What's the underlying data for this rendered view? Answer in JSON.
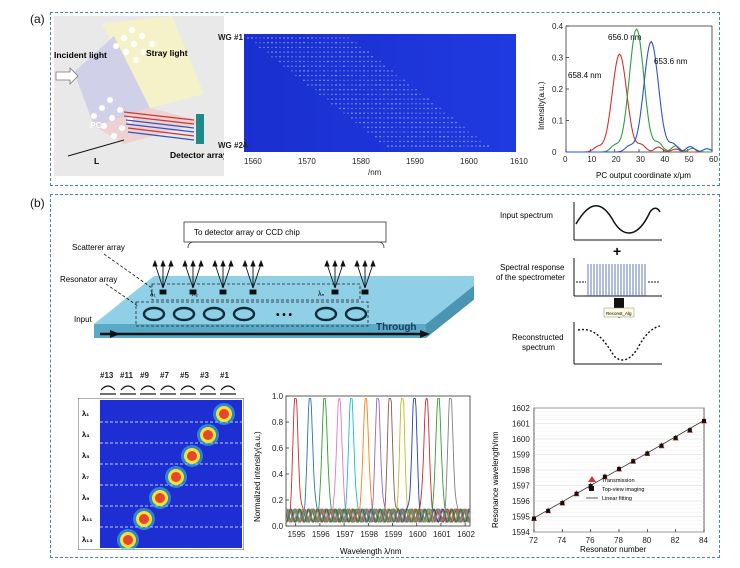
{
  "panel_a": {
    "label": "(a)",
    "schematic": {
      "incident": "Incident light",
      "stray": "Stray light",
      "pc": "PC",
      "length": "L",
      "detector": "Detector array"
    },
    "waveguide_map": {
      "top_label": "WG #1",
      "bottom_label": "WG #24",
      "x_ticks": [
        "1560",
        "1570",
        "1580",
        "1590",
        "1600",
        "1610"
      ],
      "x_unit": "/nm"
    },
    "intensity_chart": {
      "ylabel": "Intensity(a.u.)",
      "xlabel": "PC output coordinate x/μm",
      "x_ticks": [
        "0",
        "10",
        "20",
        "30",
        "40",
        "50",
        "60"
      ],
      "y_ticks": [
        "0",
        "0.1",
        "0.2",
        "0.3",
        "0.4"
      ],
      "peaks": [
        {
          "label": "656.0 nm",
          "color": "#2e9e3f"
        },
        {
          "label": "653.6 nm",
          "color": "#2b55c9"
        },
        {
          "label": "658.4 nm",
          "color": "#d2352f"
        }
      ]
    }
  },
  "panel_b": {
    "label": "(b)",
    "device": {
      "top_box": "To detector array or CCD chip",
      "scatterer": "Scatterer array",
      "resonator": "Resonator array",
      "input": "Input",
      "through": "Through",
      "dots": "• • •",
      "lambda_1": "λ₁",
      "lambda_2": "λ₂",
      "lambda_n": "λₙ"
    },
    "workflow": {
      "input_spectrum": "Input spectrum",
      "response_line1": "Spectral response",
      "response_line2": "of the spectrometer",
      "plus": "+",
      "algorithm": "Reconst_Alg",
      "recon_line1": "Reconstructed",
      "recon_line2": "spectrum"
    },
    "resonator_labels": [
      "#13",
      "#11",
      "#9",
      "#7",
      "#5",
      "#3",
      "#1"
    ],
    "lambda_labels": [
      "λ₁",
      "λ₃",
      "λ₅",
      "λ₇",
      "λ₉",
      "λ₁₁",
      "λ₁₃"
    ],
    "spectrum_chart": {
      "ylabel": "Normalized intensity(a.u.)",
      "xlabel": "Wavelength λ/nm",
      "x_ticks": [
        "1595",
        "1596",
        "1597",
        "1598",
        "1599",
        "1600",
        "1601",
        "1602"
      ],
      "y_ticks": [
        "0.0",
        "0.2",
        "0.4",
        "0.6",
        "0.8",
        "1.0"
      ]
    },
    "resonance_chart": {
      "ylabel": "Resonance wavelength/nm",
      "xlabel": "Resonator number",
      "x_ticks": [
        "72",
        "74",
        "76",
        "78",
        "80",
        "82",
        "84"
      ],
      "y_ticks": [
        "1594",
        "1595",
        "1596",
        "1597",
        "1598",
        "1599",
        "1600",
        "1601",
        "1602"
      ],
      "legend": [
        "Transmission",
        "Top-view imaging",
        "Linear fitting"
      ]
    }
  },
  "chart_data": [
    {
      "type": "line",
      "xlabel": "PC output coordinate x/μm",
      "ylabel": "Intensity(a.u.)",
      "xlim": [
        0,
        60
      ],
      "ylim": [
        0,
        0.4
      ],
      "series": [
        {
          "name": "658.4 nm",
          "color": "#d2352f",
          "peak_x": 22,
          "peak_y": 0.31
        },
        {
          "name": "656.0 nm",
          "color": "#2e9e3f",
          "peak_x": 29,
          "peak_y": 0.39
        },
        {
          "name": "653.6 nm",
          "color": "#2b55c9",
          "peak_x": 35,
          "peak_y": 0.35
        }
      ]
    },
    {
      "type": "line",
      "xlabel": "Wavelength λ/nm",
      "ylabel": "Normalized intensity(a.u.)",
      "xlim": [
        1594.6,
        1602.2
      ],
      "ylim": [
        0,
        1.0
      ],
      "peaks_nm": [
        1595.0,
        1595.6,
        1596.2,
        1596.8,
        1597.3,
        1597.9,
        1598.4,
        1598.9,
        1599.4,
        1599.9,
        1600.4,
        1600.9,
        1601.4
      ],
      "colors": [
        "#d62728",
        "#1f77b4",
        "#2ca02c",
        "#e377c2",
        "#17becf",
        "#ff7f0e",
        "#9467bd",
        "#8c564b",
        "#bcbd22",
        "#1f3fbf",
        "#d62728",
        "#2ca02c",
        "#7f7f7f"
      ]
    },
    {
      "type": "scatter",
      "xlabel": "Resonator number",
      "ylabel": "Resonance wavelength/nm",
      "xlim": [
        72,
        84
      ],
      "ylim": [
        1594,
        1602
      ],
      "x": [
        72,
        73,
        74,
        75,
        76,
        77,
        78,
        79,
        80,
        81,
        82,
        83,
        84
      ],
      "y": [
        1594.9,
        1595.4,
        1595.9,
        1596.5,
        1597.0,
        1597.6,
        1598.1,
        1598.6,
        1599.1,
        1599.6,
        1600.1,
        1600.6,
        1601.2
      ]
    }
  ]
}
